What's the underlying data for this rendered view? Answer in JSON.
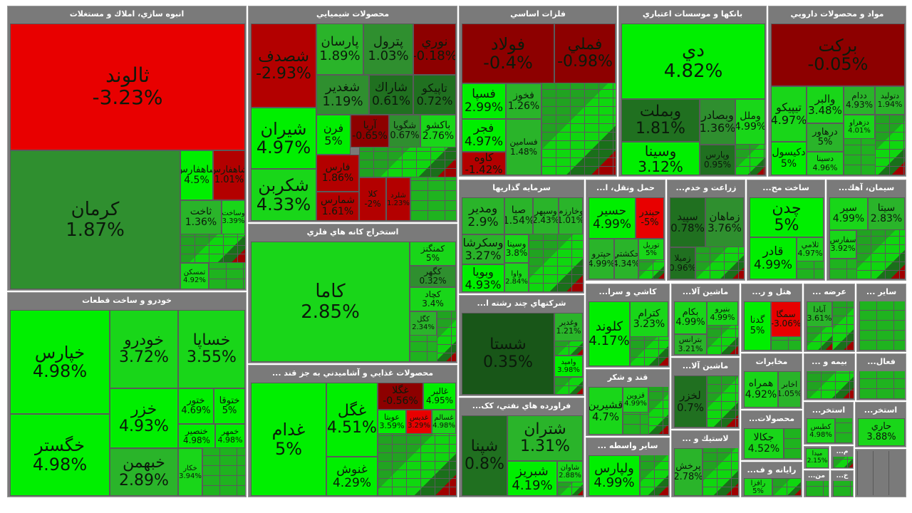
{
  "sectors": {
    "real_estate": "انبوه سازي، املاك و مستغلات",
    "auto": "خودرو و ساخت قطعات",
    "chemical": "محصولات شيميايي",
    "mining": "استخراج کانه هاي فلزي",
    "food": "محصولات غذايي و آشاميدني به جز قند ...",
    "metals": "فلزات اساسي",
    "investment": "سرمايه گذاريها",
    "diversified": "شرکتهاي چند رشته ا...",
    "refinery": "فراورده هاي نفتي، کک...",
    "banks": "بانکها و موسسات اعتباري",
    "pharma": "مواد و محصولات دارويي",
    "transport": "حمل ونقل، ا...",
    "agri": "زراعت و خدم...",
    "construction": "ساخت مح...",
    "cement": "سيمان، آهك...",
    "tiles": "کاشي و سرا...",
    "machinery1": "ماشين آلا...",
    "hotel": "هتل و ر...",
    "supply": "عرضه ...",
    "other": "ساير ...",
    "sugar": "قند و شکر",
    "machinery2": "ماشين آلا...",
    "telecom": "مخابرات",
    "insurance": "بيمه و ...",
    "activities": "فعال...",
    "other_intermediary": "ساير واسطه ...",
    "rubber": "لاستيك و ...",
    "products": "محصولات...",
    "extraction1": "استخر...",
    "extraction2": "استخر...",
    "computer": "رايانه و ف...",
    "services": "خ...",
    "min": "من...",
    "m": "م...",
    "kh": "خ..."
  },
  "stocks": {
    "tallond": {
      "sym": "ثالوند",
      "chg": "-3.23%"
    },
    "kerman": {
      "sym": "كرمان",
      "chg": "1.87%"
    },
    "shfars": {
      "sym": "شاهفارس",
      "chg": "4.5%"
    },
    "sfars": {
      "sym": "شاهفارس",
      "chg": "1.01%"
    },
    "takht": {
      "sym": "ثاخت",
      "chg": "1.36%"
    },
    "vsakht": {
      "sym": "وساخت",
      "chg": "3.39%"
    },
    "tamskan": {
      "sym": "تمسكن",
      "chg": "4.92%"
    },
    "khaparis": {
      "sym": "خپارس",
      "chg": "4.98%"
    },
    "khodro": {
      "sym": "خودرو",
      "chg": "3.72%"
    },
    "khsapa": {
      "sym": "خساپا",
      "chg": "3.55%"
    },
    "khazar": {
      "sym": "خزر",
      "chg": "4.93%"
    },
    "khetour": {
      "sym": "ختور",
      "chg": "4.69%"
    },
    "khetogha": {
      "sym": "ختوقا",
      "chg": "5%"
    },
    "khegostar": {
      "sym": "خگستر",
      "chg": "4.98%"
    },
    "khebahman": {
      "sym": "خبهمن",
      "chg": "2.89%"
    },
    "khenasir": {
      "sym": "خنصير",
      "chg": "4.98%"
    },
    "khomhar": {
      "sym": "خمهر",
      "chg": "4.98%"
    },
    "khkar": {
      "sym": "خكار",
      "chg": "3.94%"
    },
    "shesadaf": {
      "sym": "شصدف",
      "chg": "-2.93%"
    },
    "parsan": {
      "sym": "پارسان",
      "chg": "1.89%"
    },
    "petrol": {
      "sym": "پترول",
      "chg": "1.03%"
    },
    "noori": {
      "sym": "نوري",
      "chg": "-0.18%"
    },
    "shghadir": {
      "sym": "شغدير",
      "chg": "1.19%"
    },
    "sharak": {
      "sym": "شاراك",
      "chg": "0.61%"
    },
    "tapiko": {
      "sym": "تاپيكو",
      "chg": "0.72%"
    },
    "shiran": {
      "sym": "شيران",
      "chg": "4.97%"
    },
    "faran": {
      "sym": "فرن",
      "chg": "5%"
    },
    "arya": {
      "sym": "آريا",
      "chg": "-0.65%"
    },
    "shegouya": {
      "sym": "شگويا",
      "chg": "0.67%"
    },
    "bakshoo": {
      "sym": "باكشو",
      "chg": "2.76%"
    },
    "shekarbon": {
      "sym": "شكربن",
      "chg": "4.33%"
    },
    "faris": {
      "sym": "فارس",
      "chg": "1.86%"
    },
    "shamaras": {
      "sym": "شمارس",
      "chg": "1.61%"
    },
    "kala": {
      "sym": "كلا",
      "chg": "-2%"
    },
    "shelordeh": {
      "sym": "شلرد",
      "chg": "1.23%"
    },
    "kama": {
      "sym": "كاما",
      "chg": "2.85%"
    },
    "kamangir": {
      "sym": "كمنگنز",
      "chg": "5%"
    },
    "kgohar": {
      "sym": "كگهر",
      "chg": "0.32%"
    },
    "kchad": {
      "sym": "كچاد",
      "chg": "3.4%"
    },
    "kgol": {
      "sym": "كگل",
      "chg": "2.34%"
    },
    "ghadam": {
      "sym": "غدام",
      "chg": "5%"
    },
    "ghegol": {
      "sym": "غگل",
      "chg": "4.51%"
    },
    "ghanoush": {
      "sym": "غنوش",
      "chg": "4.29%"
    },
    "ghgola": {
      "sym": "غگلا",
      "chg": "-0.56%"
    },
    "ghalbar": {
      "sym": "غالبر",
      "chg": "4.95%"
    },
    "oubta": {
      "sym": "عوبتا",
      "chg": "3.59%"
    },
    "ghadis": {
      "sym": "غدیس",
      "chg": "3.29%"
    },
    "ghsalim": {
      "sym": "غسالم",
      "chg": "4.98%"
    },
    "afoulad": {
      "sym": "فولاد",
      "chg": "-0.4%"
    },
    "fameli": {
      "sym": "فملي",
      "chg": "-0.98%"
    },
    "fesepa": {
      "sym": "فسپا",
      "chg": "2.99%"
    },
    "fekhouz": {
      "sym": "فخوز",
      "chg": "1.26%"
    },
    "fajr": {
      "sym": "فجر",
      "chg": "4.97%"
    },
    "fesamin": {
      "sym": "فسامين",
      "chg": "1.48%"
    },
    "kaveh": {
      "sym": "كاوه",
      "chg": "-1.42%"
    },
    "vamedar": {
      "sym": "ومدير",
      "chg": "2.9%"
    },
    "vsaba": {
      "sym": "صبا",
      "chg": "1.54%"
    },
    "vsepahr": {
      "sym": "وسپهر",
      "chg": "2.43%"
    },
    "vkharazm": {
      "sym": "وخارزم",
      "chg": "1.01%"
    },
    "vsekarsha": {
      "sym": "وسكرشا",
      "chg": "3.27%"
    },
    "vsina": {
      "sym": "وسينا",
      "chg": "3.8%"
    },
    "vbouya": {
      "sym": "وبويا",
      "chg": "4.93%"
    },
    "vva": {
      "sym": "واوا",
      "chg": "2.84%"
    },
    "shasta": {
      "sym": "شستا",
      "chg": "0.35%"
    },
    "vghadir": {
      "sym": "وغدير",
      "chg": "1.21%"
    },
    "vamid": {
      "sym": "واميد",
      "chg": "3.98%"
    },
    "shepana": {
      "sym": "شپنا",
      "chg": "0.8%"
    },
    "shetran": {
      "sym": "شتران",
      "chg": "1.31%"
    },
    "shbriz": {
      "sym": "شبريز",
      "chg": "4.19%"
    },
    "shavan": {
      "sym": "شاوان",
      "chg": "2.88%"
    },
    "dey": {
      "sym": "دي",
      "chg": "4.82%"
    },
    "vbmellat": {
      "sym": "وبملت",
      "chg": "1.81%"
    },
    "vbsader": {
      "sym": "وبصادر",
      "chg": "1.36%"
    },
    "vmellal": {
      "sym": "وملل",
      "chg": "4.99%"
    },
    "vsina2": {
      "sym": "وسينا",
      "chg": "3.12%"
    },
    "vpars": {
      "sym": "وپارس",
      "chg": "0.95%"
    },
    "barkat": {
      "sym": "بركت",
      "chg": "-0.05%"
    },
    "tipiko": {
      "sym": "تيپيكو",
      "chg": "4.97%"
    },
    "valbar": {
      "sym": "والبر",
      "chg": "3.48%"
    },
    "ddam": {
      "sym": "ددام",
      "chg": "4.93%"
    },
    "dtolid": {
      "sym": "دتوليد",
      "chg": "1.94%"
    },
    "darhavar": {
      "sym": "درهاور",
      "chg": "5%"
    },
    "dkisol": {
      "sym": "دكيسول",
      "chg": "5%"
    },
    "dsina": {
      "sym": "دسينا",
      "chg": "4.96%"
    },
    "dzahrav": {
      "sym": "دزهراو",
      "chg": "4.01%"
    },
    "hesir": {
      "sym": "حسير",
      "chg": "4.99%"
    },
    "hbandar": {
      "sym": "حبندر",
      "chg": "-5%"
    },
    "hakashti": {
      "sym": "حكشتي",
      "chg": "4.34%"
    },
    "hpetro": {
      "sym": "حپترو",
      "chg": "4.99%"
    },
    "touril": {
      "sym": "توريل",
      "chg": "5%"
    },
    "zmahan": {
      "sym": "زماهان",
      "chg": "3.76%"
    },
    "zsepid": {
      "sym": "سپيد",
      "chg": "0.78%"
    },
    "zmilan": {
      "sym": "زميلا",
      "chg": "0.96%"
    },
    "chedan": {
      "sym": "چدن",
      "chg": "5%"
    },
    "ghader": {
      "sym": "قادر",
      "chg": "4.99%"
    },
    "ghelami": {
      "sym": "ثلامي",
      "chg": "4.97%"
    },
    "seir": {
      "sym": "سير",
      "chg": "4.99%"
    },
    "sita": {
      "sym": "سيتا",
      "chg": "2.83%"
    },
    "sefars": {
      "sym": "سفارس",
      "chg": "3.92%"
    },
    "klond": {
      "sym": "كلوند",
      "chg": "4.17%"
    },
    "ktram": {
      "sym": "كترام",
      "chg": "3.23%"
    },
    "bkam": {
      "sym": "بكام",
      "chg": "4.99%"
    },
    "bniro": {
      "sym": "بنيرو",
      "chg": "4.99%"
    },
    "btransf": {
      "sym": "بترانس",
      "chg": "3.21%"
    },
    "ssomgana": {
      "sym": "سمگا",
      "chg": "-3.06%"
    },
    "gadna": {
      "sym": "گدنا",
      "chg": "5%"
    },
    "abadan": {
      "sym": "آبادا",
      "chg": "3.61%"
    },
    "gheshirin": {
      "sym": "قشيرين",
      "chg": "4.7%"
    },
    "ghazvin": {
      "sym": "قزوين",
      "chg": "4.99%"
    },
    "lkhazar": {
      "sym": "لخزر",
      "chg": "0.7%"
    },
    "hamrah": {
      "sym": "همراه",
      "chg": "4.92%"
    },
    "akhabar": {
      "sym": "اخابر",
      "chg": "1.05%"
    },
    "vlpars": {
      "sym": "ولپارس",
      "chg": "4.99%"
    },
    "ptrans": {
      "sym": "پرخش",
      "chg": "2.78%"
    },
    "jkala": {
      "sym": "جكالا",
      "chg": "4.52%"
    },
    "ravaz": {
      "sym": "رافزا",
      "chg": "5%"
    },
    "hareh": {
      "sym": "حاري",
      "chg": "3.88%"
    },
    "ktabas": {
      "sym": "كطبس",
      "chg": "4.98%"
    },
    "meda": {
      "sym": "ميدا",
      "chg": "2.15%"
    }
  }
}
